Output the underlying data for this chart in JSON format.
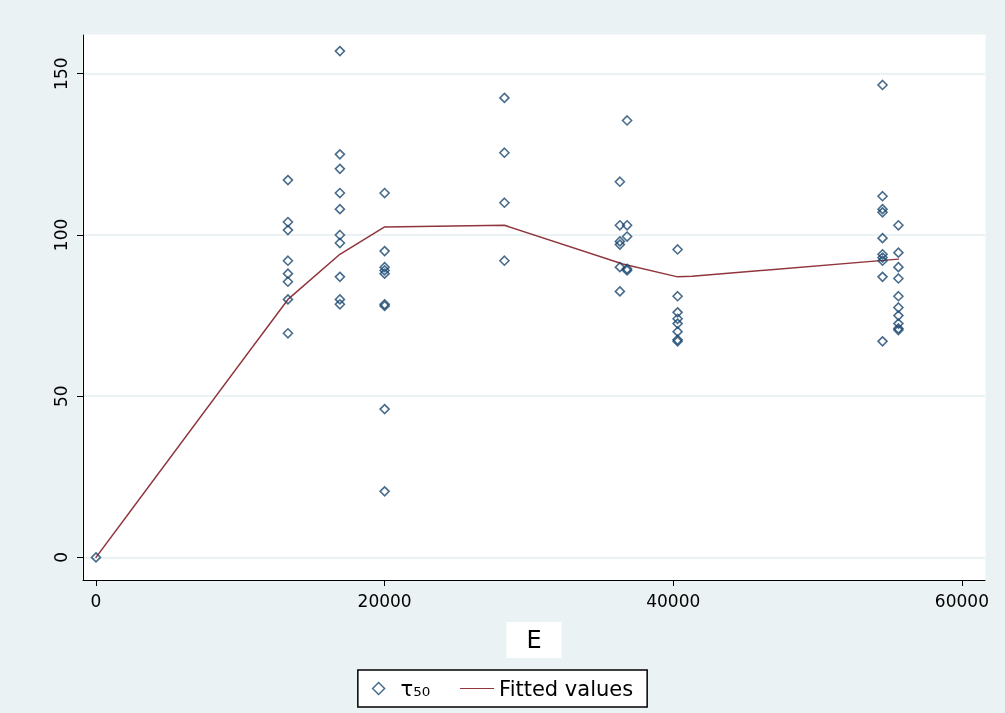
{
  "chart_data": {
    "type": "scatter",
    "xlabel": "E",
    "xlim": [
      -900,
      61600
    ],
    "ylim": [
      -7,
      162
    ],
    "xticks": [
      0,
      20000,
      40000,
      60000
    ],
    "yticks": [
      0,
      50,
      100,
      150
    ],
    "grid": "y",
    "legend": "bottom",
    "series": [
      {
        "name": "τ₅₀",
        "marker": "diamond",
        "color": "#1a476f",
        "x": [
          0,
          13300,
          13300,
          13300,
          13300,
          13300,
          13300,
          13300,
          13300,
          16900,
          16900,
          16900,
          16900,
          16900,
          16900,
          16900,
          16900,
          16900,
          16900,
          20000,
          20000,
          20000,
          20000,
          20000,
          20000,
          20000,
          20000,
          20000,
          28300,
          28300,
          28300,
          28300,
          36300,
          36300,
          36300,
          36300,
          36300,
          36300,
          36800,
          36800,
          36800,
          36800,
          36800,
          40300,
          40300,
          40300,
          40300,
          40300,
          40300,
          40300,
          40300,
          54500,
          54500,
          54500,
          54500,
          54500,
          54500,
          54500,
          54500,
          54500,
          54500,
          55600,
          55600,
          55600,
          55600,
          55600,
          55600,
          55600,
          55600,
          55600,
          55600
        ],
        "values": [
          0,
          117,
          104,
          101.5,
          92,
          88,
          85.5,
          80,
          69.5,
          157,
          125,
          120.5,
          113,
          108,
          100,
          97.5,
          87,
          80,
          78.5,
          113,
          95,
          90,
          89,
          88,
          78.5,
          78,
          46,
          20.5,
          142.5,
          125.5,
          110,
          92,
          116.5,
          103,
          98,
          97,
          90,
          82.5,
          135.5,
          103,
          99.5,
          89.5,
          89,
          95.5,
          81,
          76,
          74,
          72.5,
          70,
          67.5,
          67,
          146.5,
          112,
          108,
          107,
          99,
          94,
          93,
          92,
          87,
          67,
          103,
          94.5,
          90,
          86.5,
          81,
          77.5,
          75,
          72.5,
          71,
          70.5
        ]
      },
      {
        "name": "Fitted values",
        "type": "line",
        "marker": "none",
        "line_style": "solid",
        "color": "#90353b",
        "x": [
          0,
          13300,
          16900,
          20000,
          28300,
          36500,
          40300,
          41300,
          55600
        ],
        "values": [
          0,
          80,
          94,
          102.5,
          103,
          91,
          87,
          87.2,
          92.5
        ]
      }
    ]
  }
}
